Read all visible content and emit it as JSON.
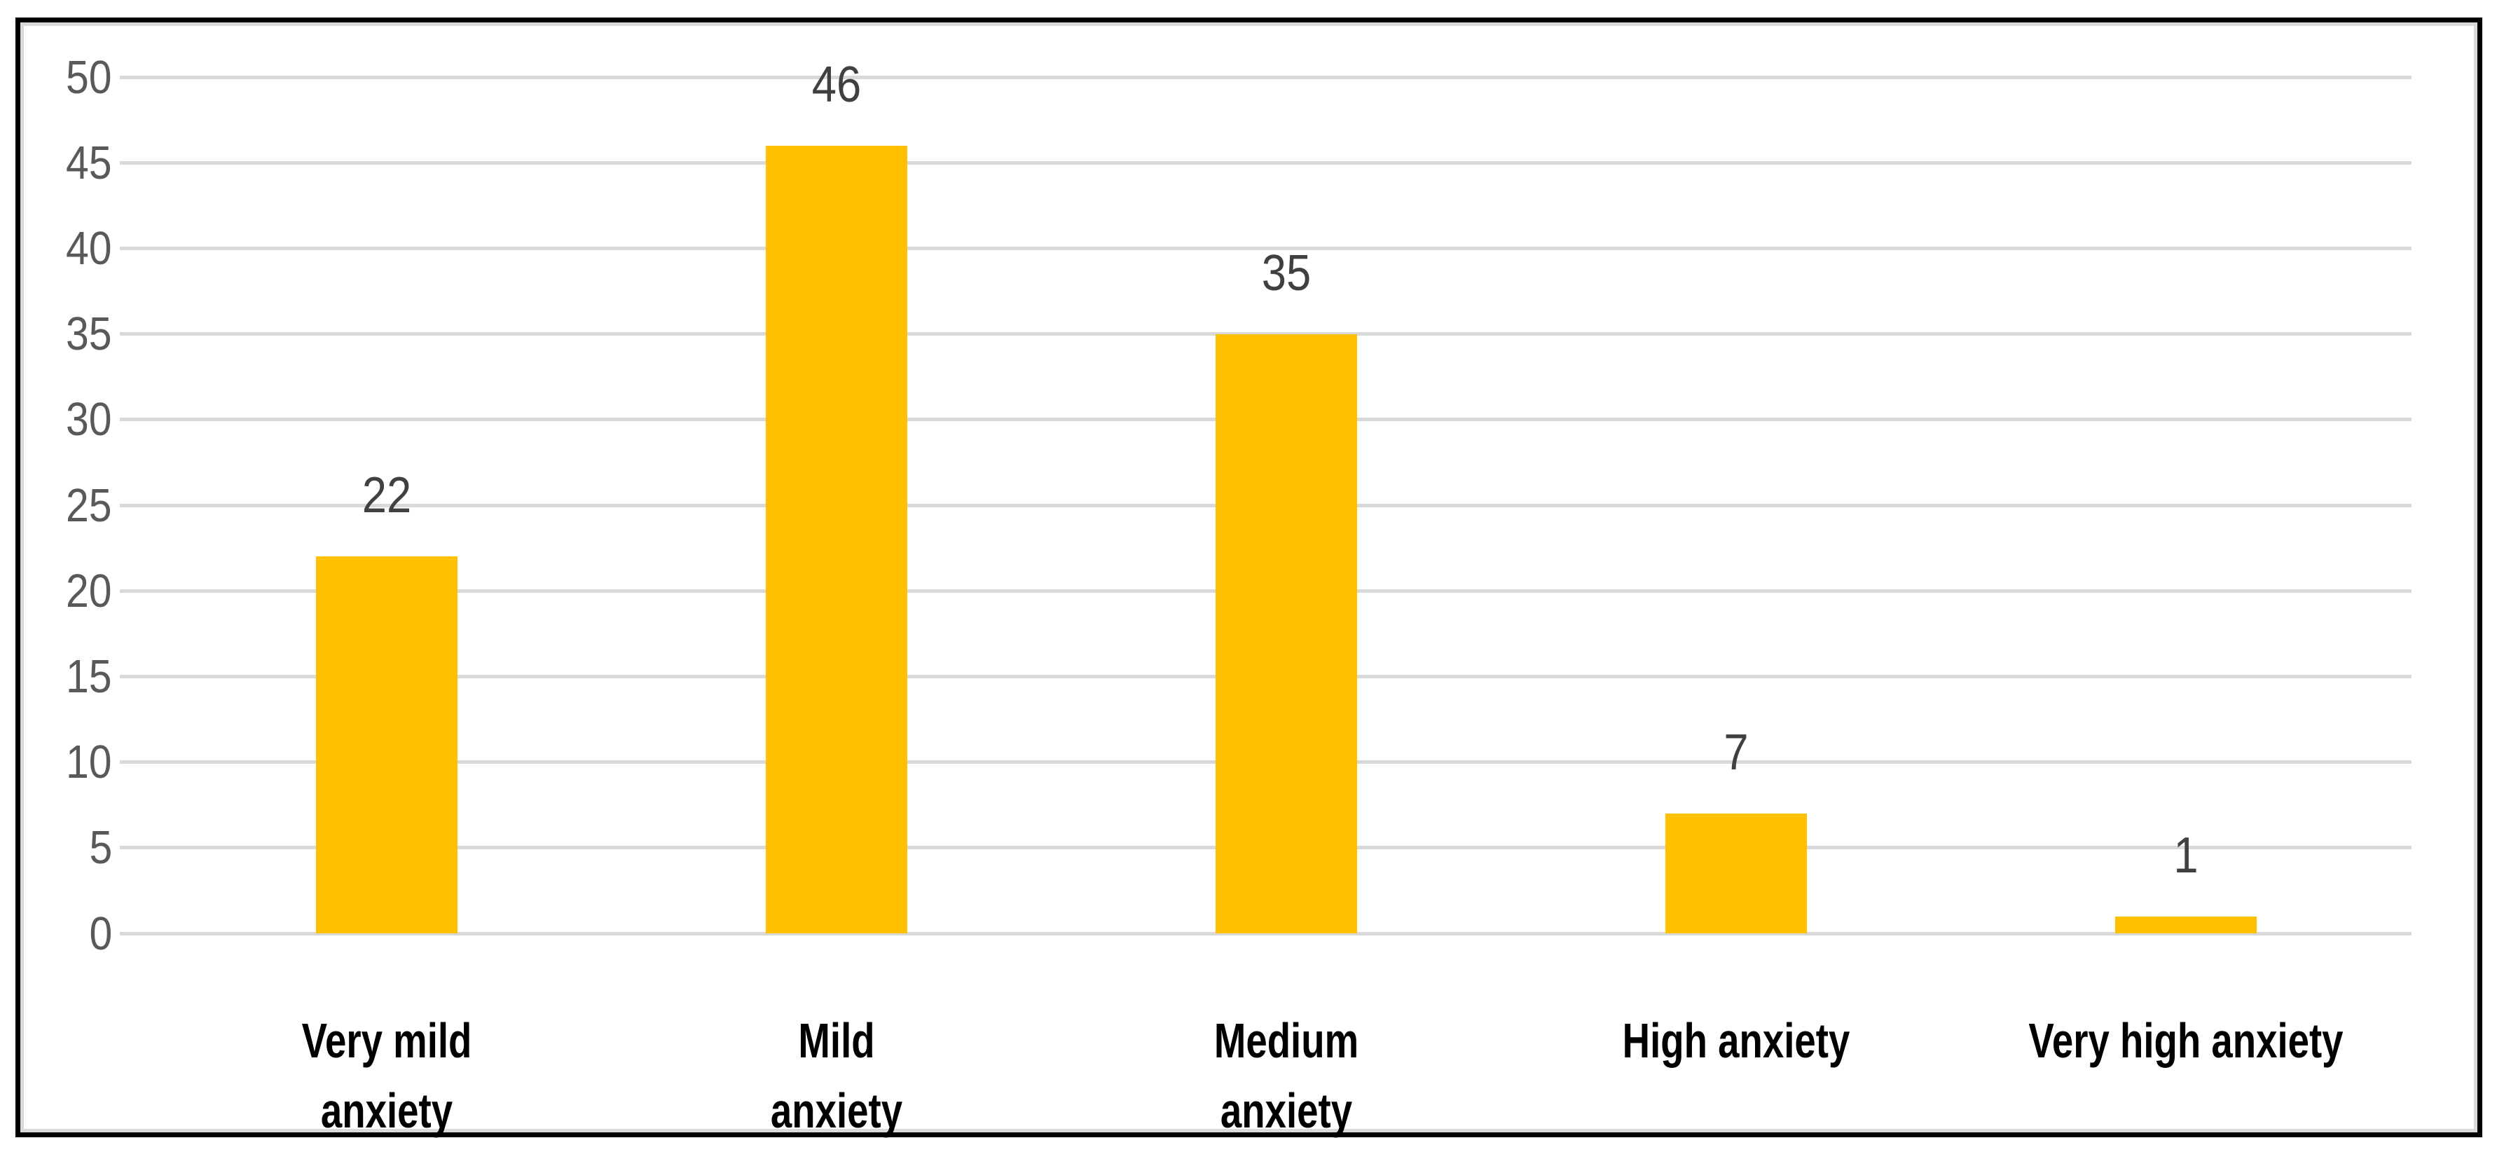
{
  "chart_data": {
    "type": "bar",
    "title": "",
    "xlabel": "",
    "ylabel": "",
    "categories": [
      "Very mild anxiety",
      "Mild anxiety",
      "Medium anxiety",
      "High anxiety",
      "Very high anxiety"
    ],
    "category_lines": [
      [
        "Very mild",
        "anxiety"
      ],
      [
        "Mild",
        "anxiety"
      ],
      [
        "Medium",
        "anxiety"
      ],
      [
        "High anxiety"
      ],
      [
        "Very high anxiety"
      ]
    ],
    "values": [
      22,
      46,
      35,
      7,
      1
    ],
    "data_labels": [
      "22",
      "46",
      "35",
      "7",
      "1"
    ],
    "ylim": [
      0,
      50
    ],
    "ytick_step": 5,
    "yticks": [
      "0",
      "5",
      "10",
      "15",
      "20",
      "25",
      "30",
      "35",
      "40",
      "45",
      "50"
    ],
    "grid": true,
    "legend_position": "none",
    "colors": {
      "bar_fill": "#FFC000",
      "gridline": "#D9D9D9",
      "tick_label": "#595959",
      "data_label": "#404040",
      "category_label": "#000000",
      "outer_border": "#000000",
      "inner_border": "#D9D9D9",
      "background": "#FFFFFF"
    }
  }
}
